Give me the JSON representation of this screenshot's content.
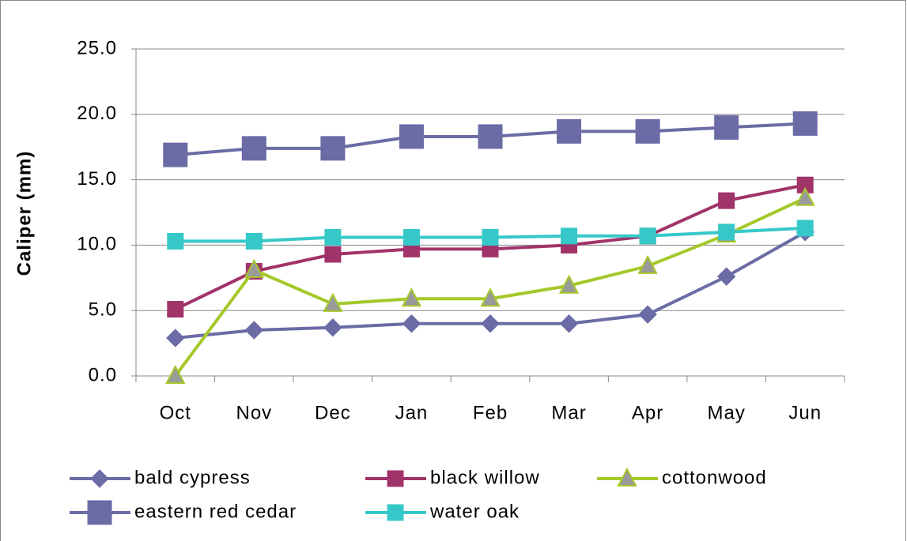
{
  "chart_data": {
    "type": "line",
    "y_label": "Caliper (mm)",
    "categories": [
      "Oct",
      "Nov",
      "Dec",
      "Jan",
      "Feb",
      "Mar",
      "Apr",
      "May",
      "Jun"
    ],
    "series": [
      {
        "name": "bald cypress",
        "color": "#6b6ba6",
        "marker": "diamond",
        "values": [
          2.9,
          3.5,
          3.7,
          4.0,
          4.0,
          4.0,
          4.7,
          7.6,
          11.0
        ]
      },
      {
        "name": "black willow",
        "color": "#a0336a",
        "marker": "square",
        "values": [
          5.1,
          8.0,
          9.3,
          9.7,
          9.7,
          10.0,
          10.7,
          13.4,
          14.6
        ]
      },
      {
        "name": "cottonwood",
        "color": "#a5c82a",
        "marker": "triangle",
        "marker_color": "#9a9a9a",
        "values": [
          0.0,
          8.1,
          5.5,
          5.9,
          5.9,
          6.9,
          8.4,
          10.8,
          13.6
        ]
      },
      {
        "name": "eastern red cedar",
        "color": "#6b6ba6",
        "marker": "big-square",
        "values": [
          16.9,
          17.4,
          17.4,
          18.3,
          18.3,
          18.7,
          18.7,
          19.0,
          19.3
        ]
      },
      {
        "name": "water oak",
        "color": "#36c8c8",
        "marker": "square",
        "values": [
          10.3,
          10.3,
          10.6,
          10.6,
          10.6,
          10.7,
          10.7,
          11.0,
          11.3
        ]
      }
    ],
    "ylim": [
      0,
      25
    ],
    "yticks": [
      {
        "value": 0,
        "label": "0.0"
      },
      {
        "value": 5,
        "label": "5.0"
      },
      {
        "value": 10,
        "label": "10.0"
      },
      {
        "value": 15,
        "label": "15.0"
      },
      {
        "value": 20,
        "label": "20.0"
      },
      {
        "value": 25,
        "label": "25.0"
      }
    ],
    "grid": true,
    "legend": "bottom"
  }
}
